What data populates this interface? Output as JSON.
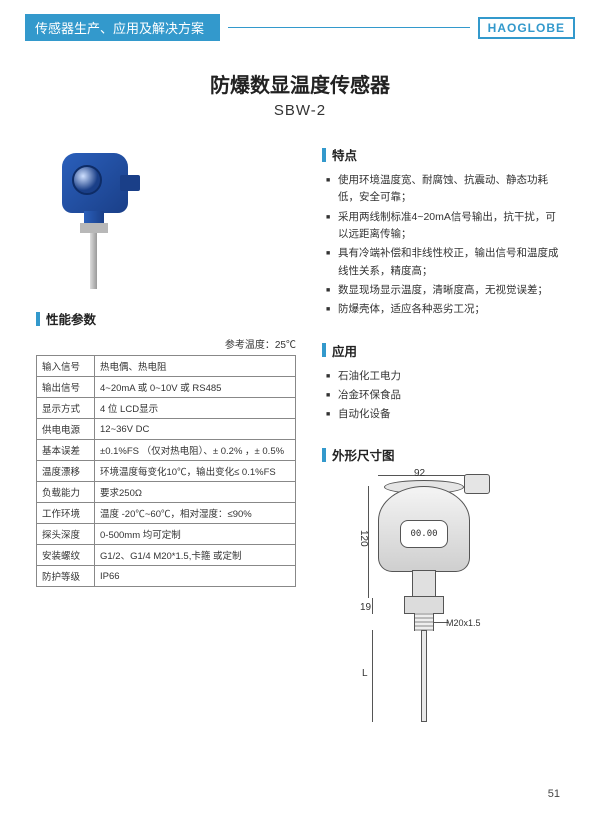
{
  "header": {
    "tag": "传感器生产、应用及解决方案",
    "brand": "HAOGLOBE"
  },
  "title": {
    "main": "防爆数显温度传感器",
    "sub": "SBW-2"
  },
  "sections": {
    "features_title": "特点",
    "params_title": "性能参数",
    "apps_title": "应用",
    "dim_title": "外形尺寸图"
  },
  "features": [
    "使用环境温度宽、耐腐蚀、抗震动、静态功耗低，安全可靠；",
    "采用两线制标准4~20mA信号输出，抗干扰，可以远距离传输；",
    "具有冷端补偿和非线性校正，输出信号和温度成线性关系，精度高；",
    "数显现场显示温度，清晰度高，无视觉误差；",
    "防爆壳体，适应各种恶劣工况；"
  ],
  "applications": [
    "石油化工电力",
    "冶金环保食品",
    "自动化设备"
  ],
  "ref_temp": "参考温度：25℃",
  "specs": [
    [
      "输入信号",
      "热电偶、热电阻"
    ],
    [
      "输出信号",
      "4~20mA  或  0~10V 或 RS485"
    ],
    [
      "显示方式",
      "4 位 LCD显示"
    ],
    [
      "供电电源",
      "12~36V DC"
    ],
    [
      "基本误差",
      "±0.1%FS （仅对热电阻）、± 0.2% ，± 0.5%"
    ],
    [
      "温度漂移",
      "环境温度每变化10℃，输出变化≤   0.1%FS"
    ],
    [
      "负载能力",
      "要求250Ω"
    ],
    [
      "工作环境",
      "温度 -20℃~60℃，相对湿度：≤90%"
    ],
    [
      "探头深度",
      "0-500mm 均可定制"
    ],
    [
      "安装螺纹",
      "G1/2、G1/4  M20*1.5,卡箍 或定制"
    ],
    [
      "防护等级",
      "IP66"
    ]
  ],
  "dimension": {
    "width_top": "92",
    "height_body": "120",
    "height_hex": "19",
    "length_stem": "L",
    "thread": "M20x1.5",
    "display": "00.00"
  },
  "page_number": "51",
  "colors": {
    "accent": "#3399cc",
    "product_blue_light": "#2a5fbb",
    "product_blue_dark": "#1a3f88",
    "line": "#555555"
  }
}
